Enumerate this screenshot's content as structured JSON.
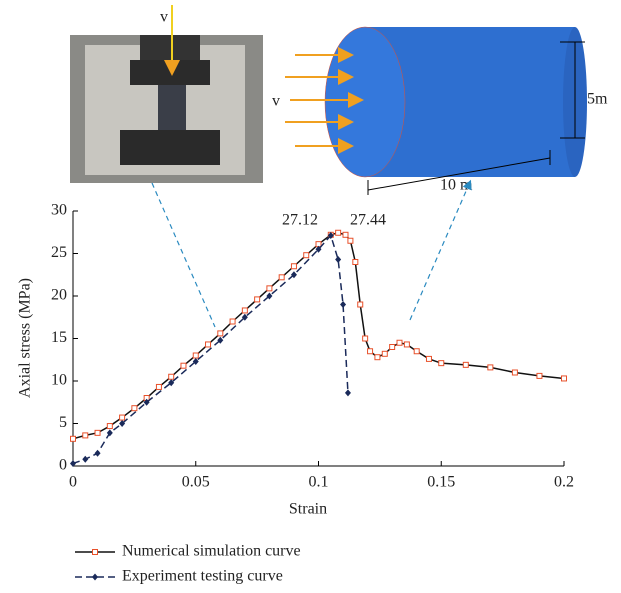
{
  "chart_data": {
    "type": "line",
    "x_label": "Strain",
    "y_label": "Axial stress (MPa)",
    "xlim": [
      0,
      0.2
    ],
    "xticks": [
      0,
      0.05,
      0.1,
      0.15,
      0.2
    ],
    "ylim": [
      0,
      30
    ],
    "yticks": [
      0,
      5,
      10,
      15,
      20,
      25,
      30
    ],
    "annotations": [
      "27.12",
      "27.44"
    ],
    "photo_labels": [
      "v"
    ],
    "model_labels": [
      "v",
      "5m",
      "10 m"
    ],
    "series": [
      {
        "name": "Numerical simulation curve",
        "color": "#e8502a",
        "marker": "square",
        "dash": false,
        "x": [
          0,
          0.005,
          0.01,
          0.015,
          0.02,
          0.025,
          0.03,
          0.035,
          0.04,
          0.045,
          0.05,
          0.055,
          0.06,
          0.065,
          0.07,
          0.075,
          0.08,
          0.085,
          0.09,
          0.095,
          0.1,
          0.105,
          0.108,
          0.111,
          0.113,
          0.115,
          0.117,
          0.119,
          0.121,
          0.124,
          0.127,
          0.13,
          0.133,
          0.136,
          0.14,
          0.145,
          0.15,
          0.16,
          0.17,
          0.18,
          0.19,
          0.2
        ],
        "values": [
          3.2,
          3.6,
          3.9,
          4.7,
          5.7,
          6.8,
          8.0,
          9.3,
          10.5,
          11.8,
          13.0,
          14.3,
          15.6,
          17.0,
          18.3,
          19.6,
          20.9,
          22.2,
          23.5,
          24.8,
          26.1,
          27.2,
          27.44,
          27.2,
          26.5,
          24,
          19,
          15,
          13.5,
          12.8,
          13.2,
          14,
          14.5,
          14.3,
          13.5,
          12.6,
          12.1,
          11.9,
          11.6,
          11.0,
          10.6,
          10.3
        ]
      },
      {
        "name": "Experiment testing curve",
        "color": "#1a2a5a",
        "marker": "diamond",
        "dash": true,
        "x": [
          0,
          0.005,
          0.01,
          0.015,
          0.02,
          0.03,
          0.04,
          0.05,
          0.06,
          0.07,
          0.08,
          0.09,
          0.1,
          0.105,
          0.108,
          0.11,
          0.112
        ],
        "values": [
          0.3,
          0.8,
          1.5,
          3.9,
          5.0,
          7.5,
          9.8,
          12.3,
          14.8,
          17.5,
          20.0,
          22.5,
          25.5,
          27.12,
          24.3,
          19,
          8.6
        ]
      }
    ]
  }
}
